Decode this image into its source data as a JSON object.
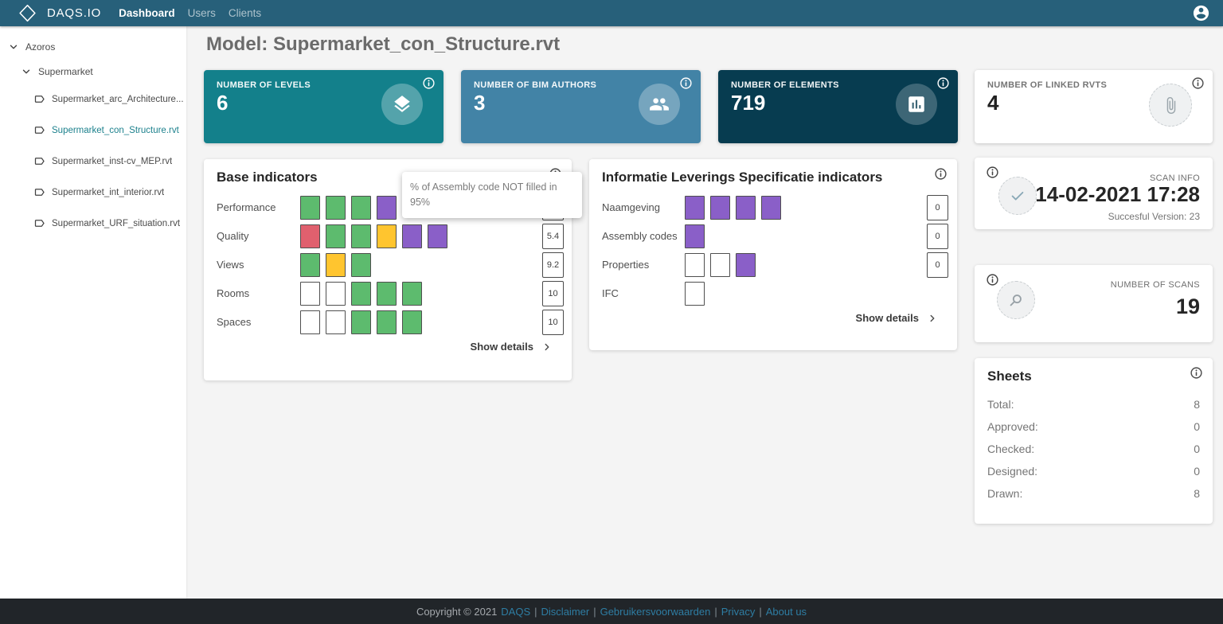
{
  "navbar": {
    "brand": "DAQS.IO",
    "items": [
      {
        "label": "Dashboard",
        "active": true
      },
      {
        "label": "Users",
        "active": false
      },
      {
        "label": "Clients",
        "active": false
      }
    ]
  },
  "sidebar": {
    "tree": [
      {
        "label": "Azoros",
        "type": "folder",
        "level": 0,
        "expanded": true,
        "selected": false
      },
      {
        "label": "Supermarket",
        "type": "folder",
        "level": 1,
        "expanded": true,
        "selected": false
      },
      {
        "label": "Supermarket_arc_Architecture...",
        "type": "file",
        "level": 2,
        "selected": false
      },
      {
        "label": "Supermarket_con_Structure.rvt",
        "type": "file",
        "level": 2,
        "selected": true
      },
      {
        "label": "Supermarket_inst-cv_MEP.rvt",
        "type": "file",
        "level": 2,
        "selected": false
      },
      {
        "label": "Supermarket_int_interior.rvt",
        "type": "file",
        "level": 2,
        "selected": false
      },
      {
        "label": "Supermarket_URF_situation.rvt",
        "type": "file",
        "level": 2,
        "selected": false
      }
    ]
  },
  "page": {
    "title": "Model: Supermarket_con_Structure.rvt"
  },
  "stat_cards": [
    {
      "label": "NUMBER OF LEVELS",
      "value": "6",
      "icon": "layers-icon",
      "bg": "#13808b",
      "circle_bg": "rgba(255,255,255,0.28)",
      "variant": "filled"
    },
    {
      "label": "NUMBER OF BIM AUTHORS",
      "value": "3",
      "icon": "people-icon",
      "bg": "#4283a6",
      "circle_bg": "rgba(255,255,255,0.28)",
      "variant": "filled"
    },
    {
      "label": "NUMBER OF ELEMENTS",
      "value": "719",
      "icon": "bar-chart-icon",
      "bg": "#073c50",
      "circle_bg": "rgba(255,255,255,0.22)",
      "variant": "filled"
    },
    {
      "label": "NUMBER OF LINKED RVTS",
      "value": "4",
      "icon": "paperclip-icon",
      "bg": "#ffffff",
      "circle_bg": "#eff1f2",
      "variant": "light"
    }
  ],
  "indicator_colors": {
    "green": "#5dbb6e",
    "red": "#e0606e",
    "yellow": "#ffc52f",
    "purple": "#8a5fc8",
    "white": "#ffffff"
  },
  "base_indicators": {
    "title": "Base indicators",
    "show_details": "Show details",
    "rows": [
      {
        "label": "Performance",
        "squares": [
          "green",
          "green",
          "green",
          "purple"
        ],
        "value": ""
      },
      {
        "label": "Quality",
        "squares": [
          "red",
          "green",
          "green",
          "yellow",
          "purple",
          "purple"
        ],
        "value": "5.4"
      },
      {
        "label": "Views",
        "squares": [
          "green",
          "yellow",
          "green"
        ],
        "value": "9.2"
      },
      {
        "label": "Rooms",
        "squares": [
          "white",
          "white",
          "green",
          "green",
          "green"
        ],
        "value": "10"
      },
      {
        "label": "Spaces",
        "squares": [
          "white",
          "white",
          "green",
          "green",
          "green"
        ],
        "value": "10"
      }
    ]
  },
  "ils_indicators": {
    "title": "Informatie Leverings Specificatie indicators",
    "show_details": "Show details",
    "rows": [
      {
        "label": "Naamgeving",
        "squares": [
          "purple",
          "purple",
          "purple",
          "purple"
        ],
        "value": "0"
      },
      {
        "label": "Assembly codes",
        "squares": [
          "purple"
        ],
        "value": "0"
      },
      {
        "label": "Properties",
        "squares": [
          "white",
          "white",
          "purple"
        ],
        "value": "0"
      },
      {
        "label": "IFC",
        "squares": [
          "white"
        ],
        "value": null
      }
    ]
  },
  "tooltip": {
    "line1": "% of Assembly code NOT filled in",
    "line2": "95%"
  },
  "scan_info": {
    "label": "SCAN INFO",
    "datetime": "14-02-2021 17:28",
    "version": "Succesful Version: 23"
  },
  "scans": {
    "label": "NUMBER OF SCANS",
    "value": "19"
  },
  "sheets": {
    "title": "Sheets",
    "rows": [
      {
        "label": "Total:",
        "value": "8"
      },
      {
        "label": "Approved:",
        "value": "0"
      },
      {
        "label": "Checked:",
        "value": "0"
      },
      {
        "label": "Designed:",
        "value": "0"
      },
      {
        "label": "Drawn:",
        "value": "8"
      }
    ]
  },
  "footer": {
    "copyright": "Copyright © 2021",
    "links": [
      "DAQS",
      "Disclaimer",
      "Gebruikersvoorwaarden",
      "Privacy",
      "About us"
    ],
    "separator": "|"
  }
}
